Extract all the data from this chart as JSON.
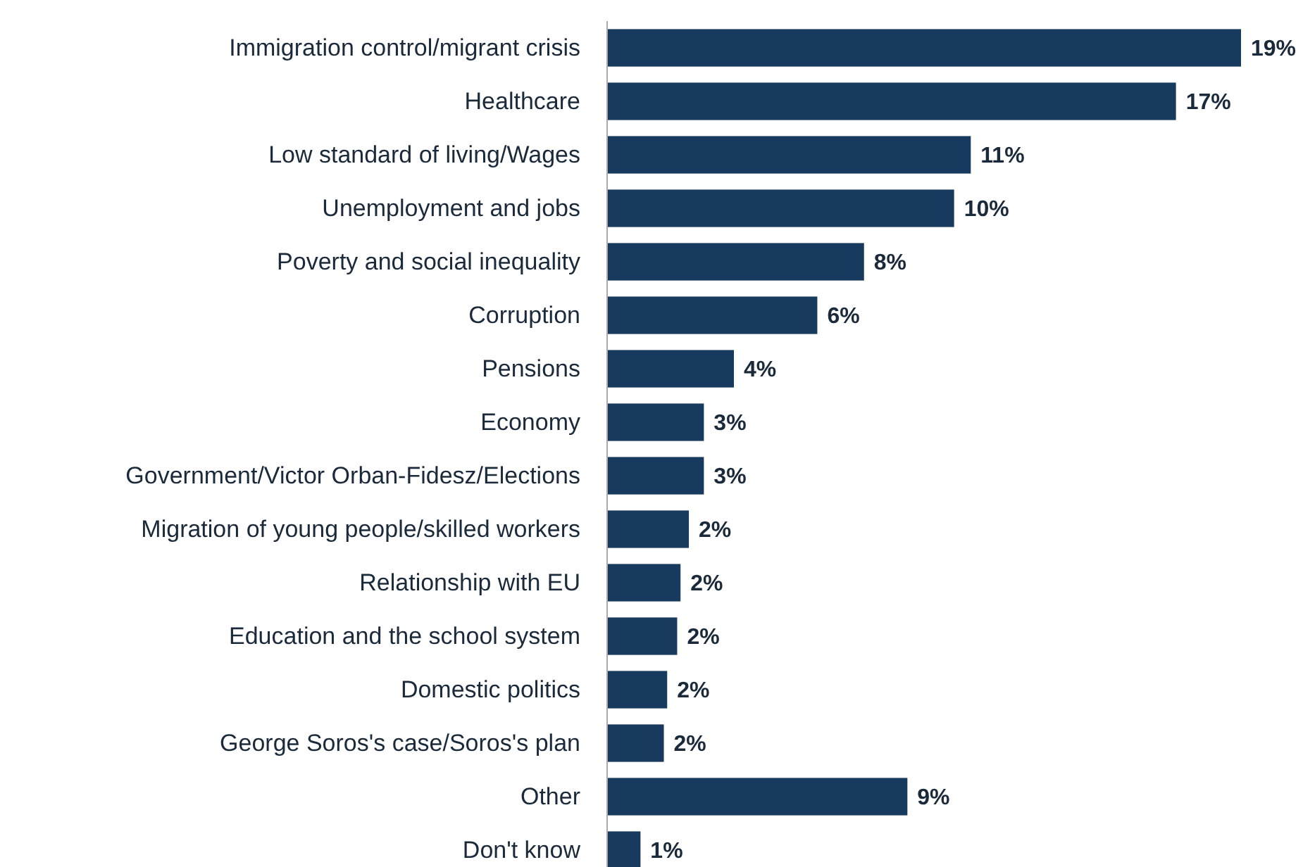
{
  "chart_data": {
    "type": "bar",
    "orientation": "horizontal",
    "categories": [
      "Immigration control/migrant crisis",
      "Healthcare",
      "Low standard of living/Wages",
      "Unemployment and jobs",
      "Poverty and social inequality",
      "Corruption",
      "Pensions",
      "Economy",
      "Government/Victor Orban-Fidesz/Elections",
      "Migration of young people/skilled workers",
      "Relationship with EU",
      "Education and the school system",
      "Domestic politics",
      "George Soros's case/Soros's plan",
      "Other",
      "Don't know"
    ],
    "values": [
      19,
      17.05,
      10.9,
      10.4,
      7.7,
      6.3,
      3.8,
      2.9,
      2.9,
      2.45,
      2.2,
      2.1,
      1.8,
      1.7,
      9,
      1
    ],
    "value_labels": [
      "19%",
      "17%",
      "11%",
      "10%",
      "8%",
      "6%",
      "4%",
      "3%",
      "3%",
      "2%",
      "2%",
      "2%",
      "2%",
      "2%",
      "9%",
      "1%"
    ],
    "color": "#173a5e"
  }
}
